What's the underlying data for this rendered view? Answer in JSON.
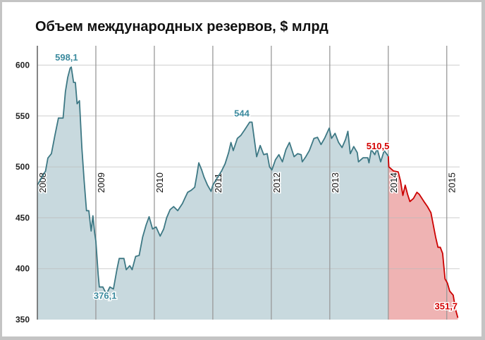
{
  "chart_data": {
    "type": "area",
    "title": "Объем международных резервов, $ млрд",
    "xlabel": "",
    "ylabel": "",
    "xlim": [
      2008.0,
      2015.22
    ],
    "ylim": [
      350,
      619
    ],
    "y_ticks": [
      350,
      400,
      450,
      500,
      550,
      600
    ],
    "y_tick_labels": [
      "350",
      "400",
      "450",
      "500",
      "550",
      "600"
    ],
    "x_ticks": [
      2008,
      2009,
      2010,
      2011,
      2012,
      2013,
      2014,
      2015
    ],
    "x_tick_labels": [
      "2008",
      "2009",
      "2010",
      "2011",
      "2012",
      "2013",
      "2014",
      "2015"
    ],
    "grid": true,
    "colors": {
      "teal_line": "#3d7884",
      "teal_fill": "#c8d9de",
      "red_line": "#cc0000",
      "red_fill": "#efb3b3",
      "teal_label": "#3b8a9e",
      "red_label": "#d40000"
    },
    "series": [
      {
        "color": "teal",
        "points": [
          [
            2008.0,
            482
          ],
          [
            2008.14,
            496
          ],
          [
            2008.18,
            508.6
          ],
          [
            2008.24,
            513
          ],
          [
            2008.3,
            531
          ],
          [
            2008.36,
            548
          ],
          [
            2008.44,
            548
          ],
          [
            2008.48,
            574
          ],
          [
            2008.52,
            588
          ],
          [
            2008.56,
            597
          ],
          [
            2008.58,
            598.1
          ],
          [
            2008.62,
            583
          ],
          [
            2008.65,
            583
          ],
          [
            2008.68,
            562
          ],
          [
            2008.72,
            565
          ],
          [
            2008.76,
            519
          ],
          [
            2008.8,
            486
          ],
          [
            2008.84,
            457
          ],
          [
            2008.88,
            457
          ],
          [
            2008.92,
            437
          ],
          [
            2008.95,
            452
          ],
          [
            2008.98,
            435
          ],
          [
            2009.0,
            427
          ],
          [
            2009.04,
            394
          ],
          [
            2009.06,
            382
          ],
          [
            2009.12,
            382
          ],
          [
            2009.18,
            375
          ],
          [
            2009.24,
            382
          ],
          [
            2009.3,
            380
          ],
          [
            2009.36,
            399
          ],
          [
            2009.4,
            410
          ],
          [
            2009.48,
            410
          ],
          [
            2009.52,
            399
          ],
          [
            2009.58,
            403
          ],
          [
            2009.62,
            399
          ],
          [
            2009.68,
            412
          ],
          [
            2009.74,
            413
          ],
          [
            2009.8,
            431
          ],
          [
            2009.86,
            443
          ],
          [
            2009.91,
            451
          ],
          [
            2009.97,
            439
          ],
          [
            2010.03,
            441
          ],
          [
            2010.1,
            432
          ],
          [
            2010.16,
            439
          ],
          [
            2010.21,
            450
          ],
          [
            2010.27,
            458
          ],
          [
            2010.33,
            461
          ],
          [
            2010.4,
            457
          ],
          [
            2010.48,
            464
          ],
          [
            2010.52,
            469
          ],
          [
            2010.57,
            475
          ],
          [
            2010.63,
            477
          ],
          [
            2010.69,
            480
          ],
          [
            2010.73,
            493
          ],
          [
            2010.76,
            504
          ],
          [
            2010.81,
            497
          ],
          [
            2010.85,
            490
          ],
          [
            2010.91,
            482
          ],
          [
            2010.97,
            476
          ],
          [
            2011.0,
            482
          ],
          [
            2011.15,
            496
          ],
          [
            2011.21,
            503
          ],
          [
            2011.27,
            514
          ],
          [
            2011.31,
            524
          ],
          [
            2011.35,
            516
          ],
          [
            2011.42,
            528
          ],
          [
            2011.48,
            531
          ],
          [
            2011.54,
            536
          ],
          [
            2011.63,
            544
          ],
          [
            2011.67,
            544
          ],
          [
            2011.75,
            510
          ],
          [
            2011.81,
            521
          ],
          [
            2011.87,
            512
          ],
          [
            2011.93,
            513
          ],
          [
            2011.97,
            500
          ],
          [
            2012.01,
            497
          ],
          [
            2012.07,
            507
          ],
          [
            2012.13,
            512
          ],
          [
            2012.19,
            505
          ],
          [
            2012.25,
            517
          ],
          [
            2012.31,
            524
          ],
          [
            2012.39,
            510
          ],
          [
            2012.45,
            513
          ],
          [
            2012.51,
            512
          ],
          [
            2012.53,
            505
          ],
          [
            2012.59,
            510
          ],
          [
            2012.65,
            516
          ],
          [
            2012.73,
            528
          ],
          [
            2012.79,
            529
          ],
          [
            2012.85,
            522
          ],
          [
            2012.91,
            528
          ],
          [
            2012.99,
            538
          ],
          [
            2013.03,
            528
          ],
          [
            2013.09,
            533
          ],
          [
            2013.15,
            524
          ],
          [
            2013.21,
            519
          ],
          [
            2013.27,
            527
          ],
          [
            2013.31,
            535
          ],
          [
            2013.35,
            513
          ],
          [
            2013.41,
            520
          ],
          [
            2013.47,
            514
          ],
          [
            2013.49,
            505
          ],
          [
            2013.57,
            509
          ],
          [
            2013.65,
            509
          ],
          [
            2013.67,
            504
          ],
          [
            2013.71,
            517
          ],
          [
            2013.77,
            512
          ],
          [
            2013.81,
            518
          ],
          [
            2013.87,
            505
          ],
          [
            2013.93,
            516
          ],
          [
            2014.0,
            510.5
          ]
        ]
      },
      {
        "color": "red",
        "points": [
          [
            2014.0,
            510.5
          ],
          [
            2014.01,
            500
          ],
          [
            2014.07,
            497
          ],
          [
            2014.09,
            496
          ],
          [
            2014.17,
            495
          ],
          [
            2014.21,
            486
          ],
          [
            2014.25,
            472
          ],
          [
            2014.29,
            482
          ],
          [
            2014.33,
            473
          ],
          [
            2014.37,
            466
          ],
          [
            2014.43,
            469
          ],
          [
            2014.49,
            475
          ],
          [
            2014.53,
            473
          ],
          [
            2014.61,
            466
          ],
          [
            2014.67,
            461
          ],
          [
            2014.73,
            455
          ],
          [
            2014.81,
            431
          ],
          [
            2014.85,
            421
          ],
          [
            2014.89,
            421
          ],
          [
            2014.93,
            415
          ],
          [
            2014.97,
            390
          ],
          [
            2015.01,
            386
          ],
          [
            2015.05,
            378
          ],
          [
            2015.11,
            374
          ],
          [
            2015.15,
            360
          ],
          [
            2015.19,
            351.7
          ]
        ]
      }
    ],
    "annotations": [
      {
        "text": "598,1",
        "x": 2008.58,
        "y": 598.1,
        "color": "teal"
      },
      {
        "text": "376,1",
        "x": 2009.12,
        "y": 376.1,
        "color": "teal"
      },
      {
        "text": "544",
        "x": 2011.63,
        "y": 544,
        "color": "teal"
      },
      {
        "text": "510,5",
        "x": 2014.0,
        "y": 510.5,
        "color": "red"
      },
      {
        "text": "351,7",
        "x": 2015.19,
        "y": 351.7,
        "color": "red"
      }
    ]
  }
}
